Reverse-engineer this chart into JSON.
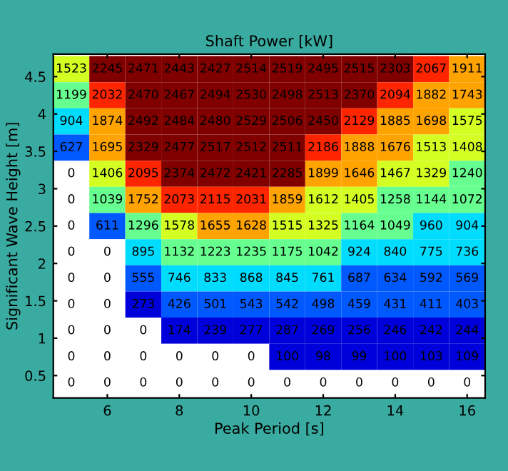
{
  "chart_data": {
    "type": "heatmap",
    "title": "Shaft Power [kW]",
    "xlabel": "Peak Period [s]",
    "ylabel": "Significant Wave Height [m]",
    "x": [
      5,
      6,
      7,
      8,
      9,
      10,
      11,
      12,
      13,
      14,
      15,
      16
    ],
    "y": [
      4.6,
      4.25,
      3.9,
      3.55,
      3.2,
      2.85,
      2.5,
      2.15,
      1.8,
      1.45,
      1.1,
      0.75,
      0.4
    ],
    "xlim": [
      4.5,
      16.5
    ],
    "xticks": [
      6,
      8,
      10,
      12,
      14,
      16
    ],
    "ylim": [
      0.2,
      4.8
    ],
    "yticks": [
      0.5,
      1,
      1.5,
      2,
      2.5,
      3,
      3.5,
      4,
      4.5
    ],
    "data_labels": true,
    "cells": [
      [
        1523,
        2245,
        2471,
        2443,
        2427,
        2514,
        2519,
        2495,
        2515,
        2303,
        2067,
        1911
      ],
      [
        1199,
        2032,
        2470,
        2467,
        2494,
        2530,
        2498,
        2513,
        2370,
        2094,
        1882,
        1743
      ],
      [
        904,
        1874,
        2492,
        2484,
        2480,
        2529,
        2506,
        2450,
        2129,
        1885,
        1698,
        1575
      ],
      [
        627,
        1695,
        2329,
        2477,
        2517,
        2512,
        2511,
        2186,
        1888,
        1676,
        1513,
        1408
      ],
      [
        0,
        1406,
        2095,
        2374,
        2472,
        2421,
        2285,
        1899,
        1646,
        1467,
        1329,
        1240
      ],
      [
        0,
        1039,
        1752,
        2073,
        2115,
        2031,
        1859,
        1612,
        1405,
        1258,
        1144,
        1072
      ],
      [
        0,
        611,
        1296,
        1578,
        1655,
        1628,
        1515,
        1325,
        1164,
        1049,
        960,
        904
      ],
      [
        0,
        0,
        895,
        1132,
        1223,
        1235,
        1175,
        1042,
        924,
        840,
        775,
        736
      ],
      [
        0,
        0,
        555,
        746,
        833,
        868,
        845,
        761,
        687,
        634,
        592,
        569
      ],
      [
        0,
        0,
        273,
        426,
        501,
        543,
        542,
        498,
        459,
        431,
        411,
        403
      ],
      [
        0,
        0,
        0,
        174,
        239,
        277,
        287,
        269,
        256,
        246,
        242,
        244
      ],
      [
        0,
        0,
        0,
        0,
        0,
        0,
        100,
        98,
        99,
        100,
        103,
        109
      ],
      [
        0,
        0,
        0,
        0,
        0,
        0,
        0,
        0,
        0,
        0,
        0,
        0
      ]
    ]
  }
}
